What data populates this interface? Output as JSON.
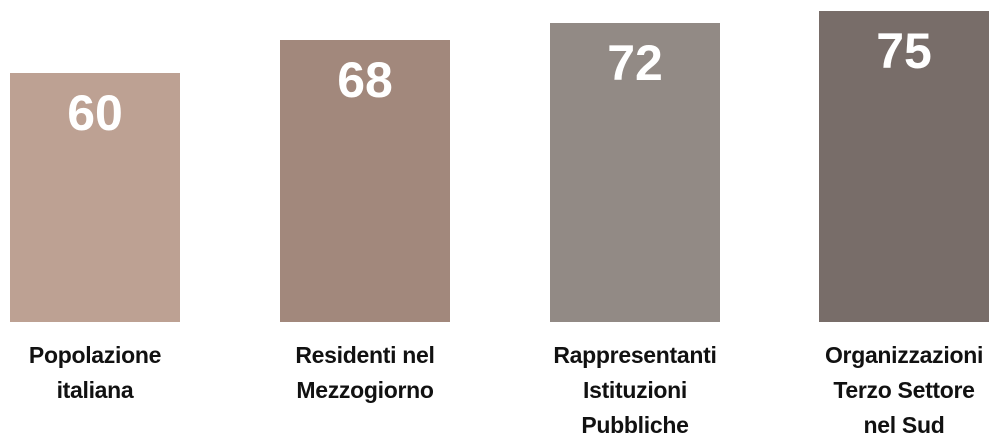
{
  "chart_data": {
    "type": "bar",
    "categories": [
      "Popolazione italiana",
      "Residenti nel Mezzogiorno",
      "Rappresentanti Istituzioni Pubbliche",
      "Organizzazioni Terzo Settore nel Sud"
    ],
    "values": [
      60,
      68,
      72,
      75
    ],
    "colors": [
      "#bda193",
      "#a2887c",
      "#928a85",
      "#786d69"
    ]
  }
}
